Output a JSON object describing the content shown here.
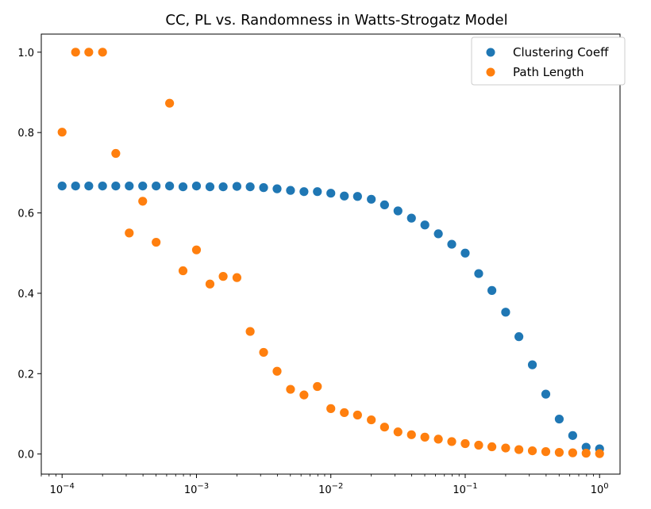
{
  "chart_data": {
    "type": "scatter",
    "title": "CC, PL vs. Randomness in Watts-Strogatz Model",
    "xlabel": "",
    "ylabel": "",
    "xscale": "log",
    "xlim": [
      7e-05,
      1.42
    ],
    "ylim": [
      -0.05,
      1.045
    ],
    "grid": false,
    "legend_position": "top-right",
    "x_ticks": [
      {
        "value": 0.0001,
        "base": "10",
        "exp": "−4"
      },
      {
        "value": 0.001,
        "base": "10",
        "exp": "−3"
      },
      {
        "value": 0.01,
        "base": "10",
        "exp": "−2"
      },
      {
        "value": 0.1,
        "base": "10",
        "exp": "−1"
      },
      {
        "value": 1,
        "base": "10",
        "exp": "0"
      }
    ],
    "y_ticks": [
      {
        "value": 0.0,
        "label": "0.0"
      },
      {
        "value": 0.2,
        "label": "0.2"
      },
      {
        "value": 0.4,
        "label": "0.4"
      },
      {
        "value": 0.6,
        "label": "0.6"
      },
      {
        "value": 0.8,
        "label": "0.8"
      },
      {
        "value": 1.0,
        "label": "1.0"
      }
    ],
    "x": [
      0.0001,
      0.000126,
      0.000158,
      0.0002,
      0.000251,
      0.000316,
      0.000398,
      0.000501,
      0.000631,
      0.000794,
      0.001,
      0.00126,
      0.00158,
      0.002,
      0.00251,
      0.00316,
      0.00398,
      0.00501,
      0.00631,
      0.00794,
      0.01,
      0.0126,
      0.0158,
      0.02,
      0.0251,
      0.0316,
      0.0398,
      0.0501,
      0.0631,
      0.0794,
      0.1,
      0.126,
      0.158,
      0.2,
      0.251,
      0.316,
      0.398,
      0.501,
      0.631,
      0.794,
      1.0
    ],
    "series": [
      {
        "name": "Clustering Coeff",
        "color": "#1f77b4",
        "values": [
          0.667,
          0.667,
          0.667,
          0.667,
          0.667,
          0.667,
          0.667,
          0.667,
          0.667,
          0.665,
          0.667,
          0.665,
          0.665,
          0.666,
          0.665,
          0.663,
          0.66,
          0.656,
          0.653,
          0.653,
          0.649,
          0.642,
          0.641,
          0.634,
          0.62,
          0.605,
          0.587,
          0.57,
          0.548,
          0.522,
          0.5,
          0.449,
          0.407,
          0.353,
          0.292,
          0.222,
          0.149,
          0.087,
          0.046,
          0.017,
          0.013
        ]
      },
      {
        "name": "Path Length",
        "color": "#ff7f0e",
        "values": [
          0.801,
          1.0,
          1.0,
          1.0,
          0.748,
          0.55,
          0.629,
          0.527,
          0.873,
          0.456,
          0.508,
          0.423,
          0.442,
          0.439,
          0.305,
          0.253,
          0.206,
          0.161,
          0.147,
          0.168,
          0.113,
          0.103,
          0.097,
          0.085,
          0.067,
          0.055,
          0.048,
          0.042,
          0.037,
          0.031,
          0.026,
          0.022,
          0.018,
          0.015,
          0.011,
          0.008,
          0.006,
          0.004,
          0.003,
          0.002,
          0.001
        ]
      }
    ]
  }
}
